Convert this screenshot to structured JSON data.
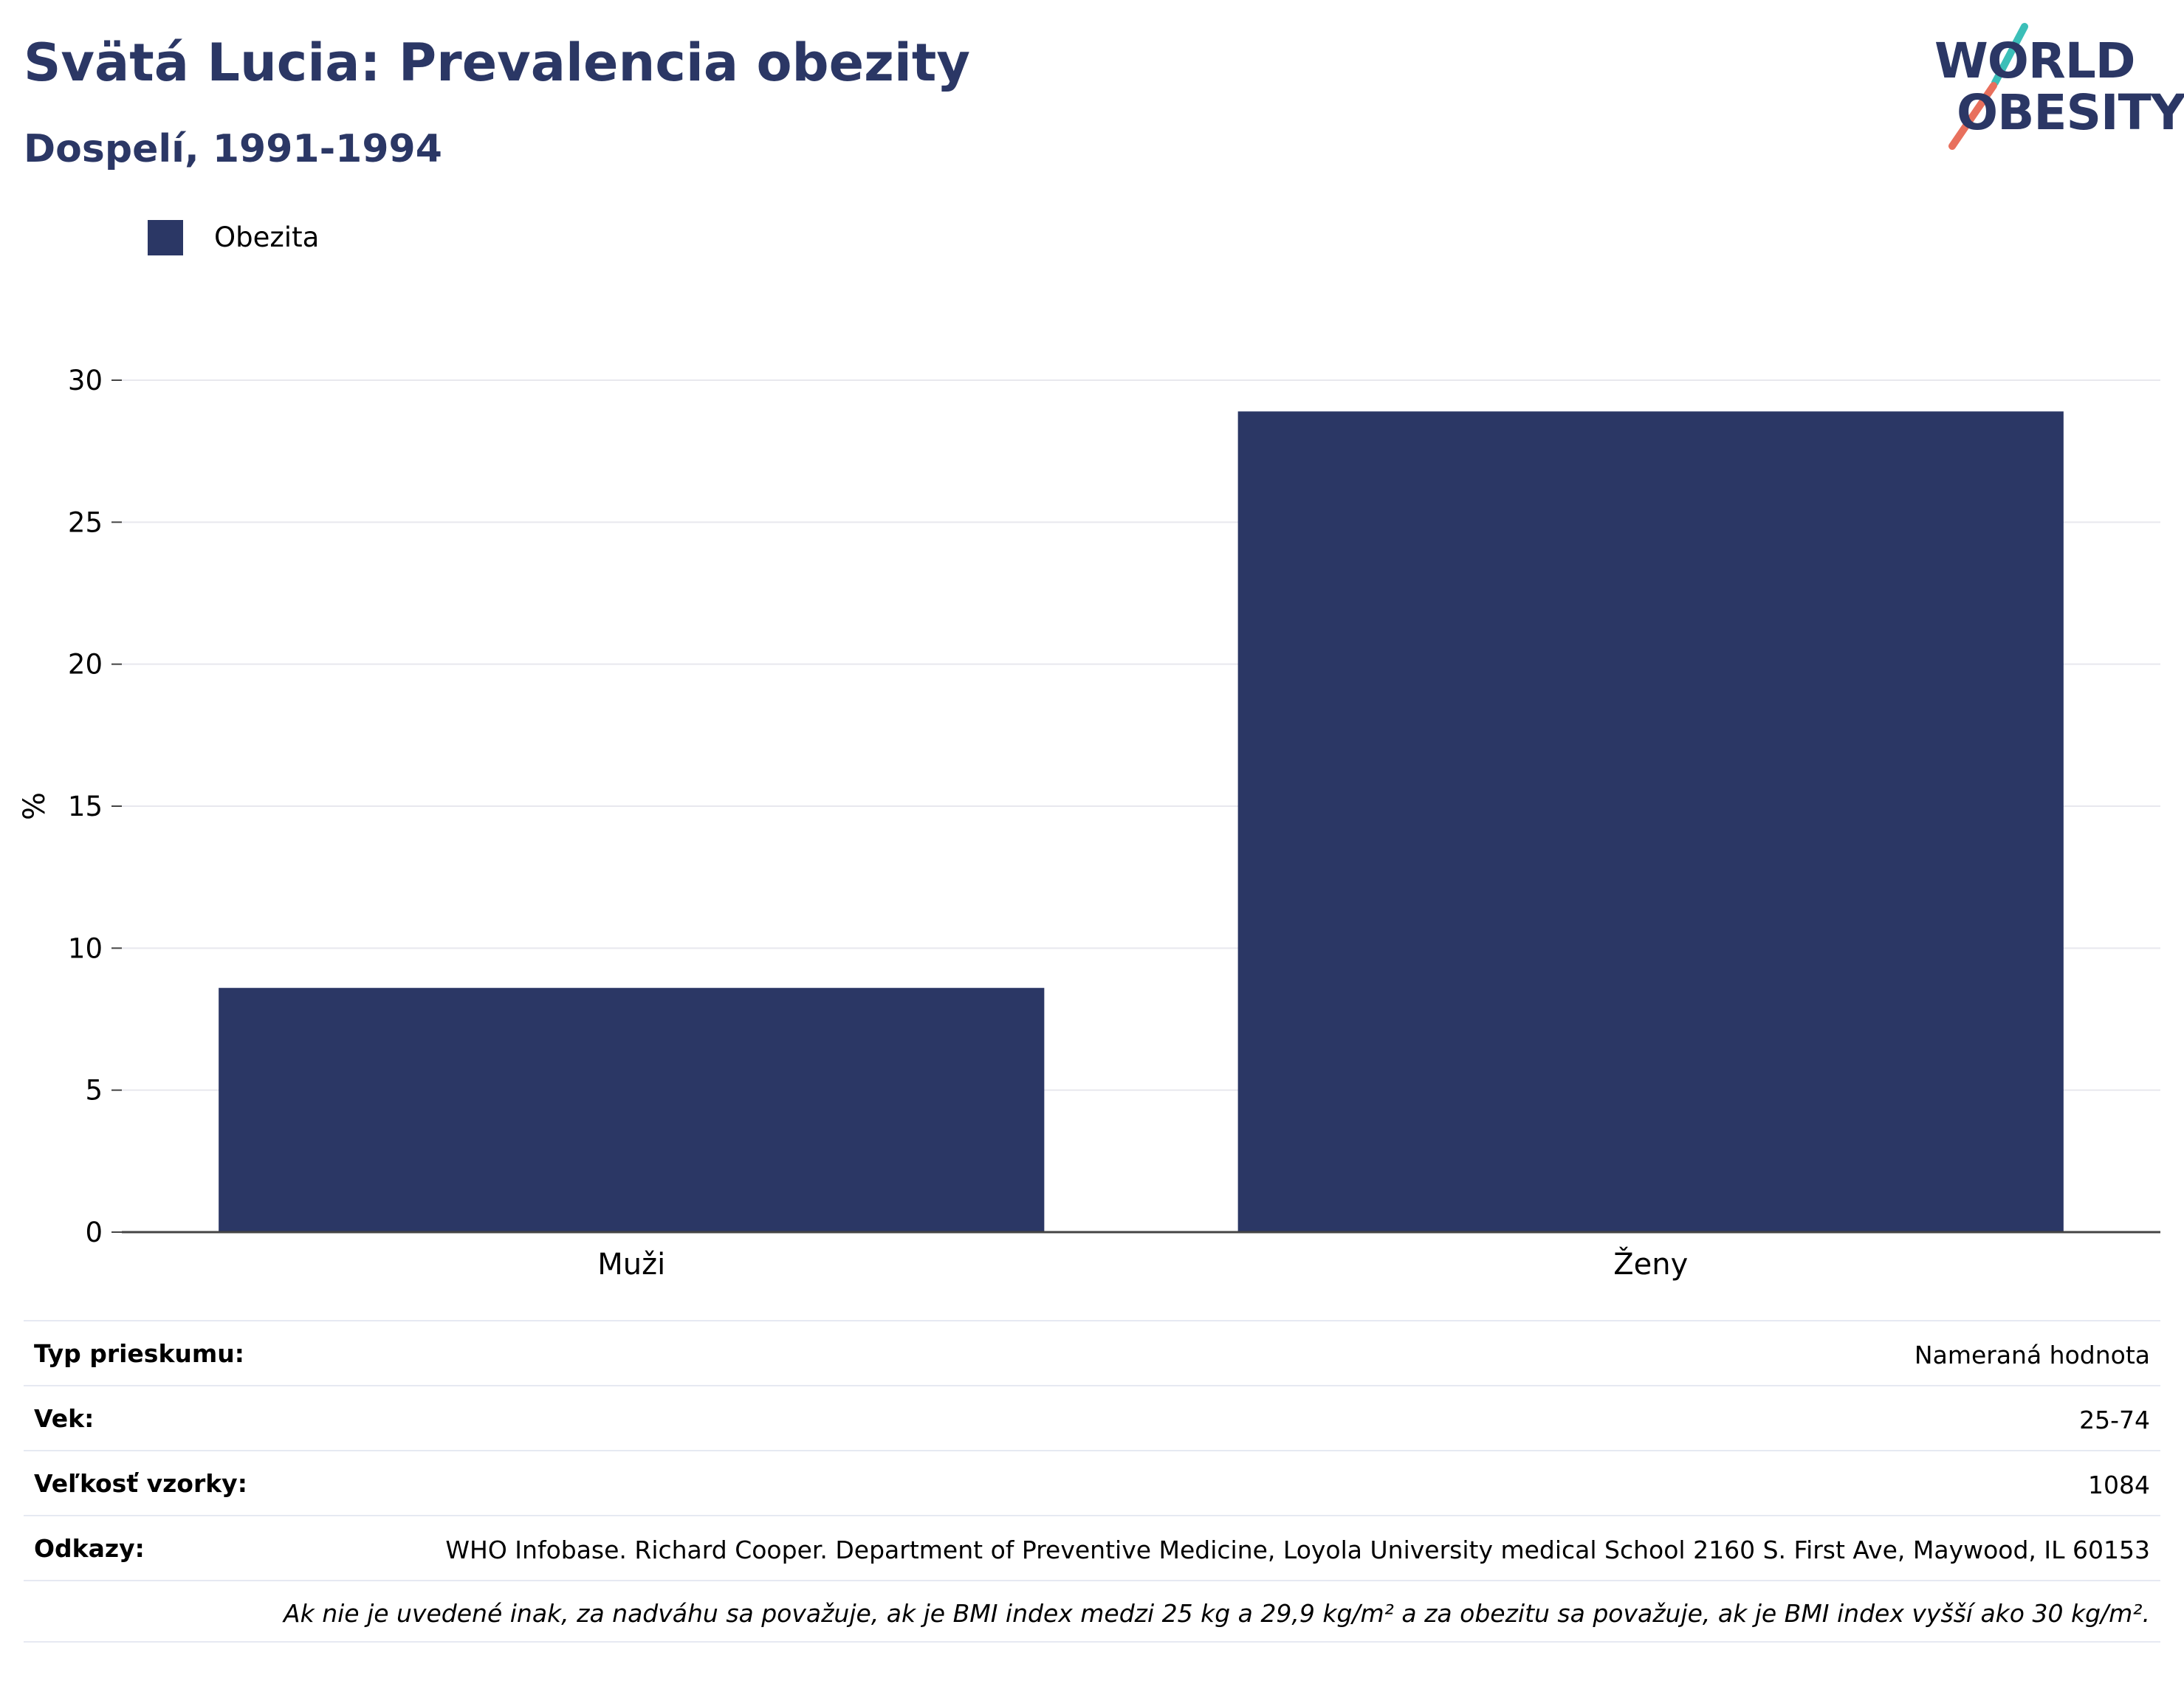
{
  "header": {
    "title": "Svätá Lucia: Prevalencia obezity",
    "subtitle": "Dospelí, 1991-1994"
  },
  "logo": {
    "line1": "WORLD",
    "line2": "OBESITY",
    "text_color": "#2b3765",
    "slash_colors": [
      "#3bbfb8",
      "#e8705d"
    ]
  },
  "legend": {
    "items": [
      {
        "label": "Obezita",
        "color": "#2b3765"
      }
    ],
    "placement": "top-left"
  },
  "chart_data": {
    "type": "bar",
    "categories": [
      "Muži",
      "Ženy"
    ],
    "series": [
      {
        "name": "Obezita",
        "values": [
          8.6,
          28.9
        ],
        "color": "#2b3765"
      }
    ],
    "title": "Svätá Lucia: Prevalencia obezity",
    "subtitle": "Dospelí, 1991-1994",
    "xlabel": "",
    "ylabel": "%",
    "ylim": [
      0,
      30
    ],
    "yticks": [
      0,
      5,
      10,
      15,
      20,
      25,
      30
    ],
    "grid": true
  },
  "info": {
    "rows": [
      {
        "key": "Typ prieskumu:",
        "value": "Nameraná hodnota"
      },
      {
        "key": "Vek:",
        "value": "25-74"
      },
      {
        "key": "Veľkosť vzorky:",
        "value": "1084"
      },
      {
        "key": "Odkazy:",
        "value": "WHO Infobase. Richard Cooper. Department of Preventive Medicine, Loyola University medical School 2160 S. First Ave, Maywood, IL 60153"
      }
    ],
    "note": "Ak nie je uvedené inak, za nadváhu sa považuje, ak je BMI index medzi 25 kg a 29,9 kg/m² a za obezitu sa považuje, ak je BMI index vyšší ako 30 kg/m²."
  }
}
